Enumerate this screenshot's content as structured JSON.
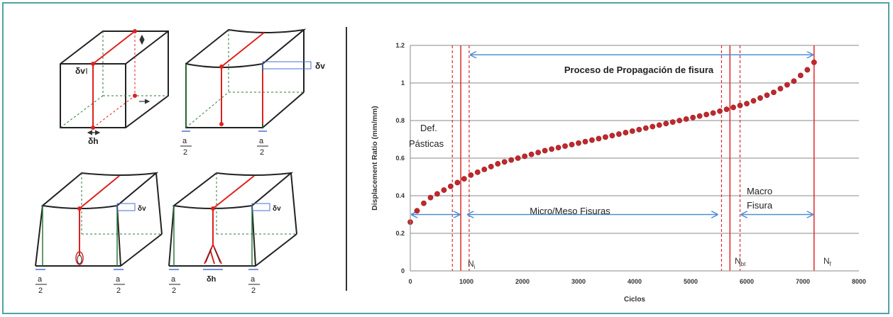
{
  "diagrams": {
    "labels": {
      "dv": "δv",
      "dh": "δh",
      "a": "a",
      "two": "2"
    }
  },
  "chart_data": {
    "type": "scatter",
    "xlabel": "Ciclos",
    "ylabel": "Displacement Ratio (mm/mm)",
    "xlim": [
      0,
      8000
    ],
    "ylim": [
      0,
      1.2
    ],
    "x_ticks": [
      0,
      1000,
      2000,
      3000,
      4000,
      5000,
      6000,
      7000,
      8000
    ],
    "y_ticks": [
      0,
      0.2,
      0.4,
      0.6,
      0.8,
      1,
      1.2
    ],
    "x_tick_labels": [
      "0",
      "1000",
      "2000",
      "3000",
      "4000",
      "5000",
      "6000",
      "7000",
      "8000"
    ],
    "y_tick_labels": [
      "0",
      "0.2",
      "0.4",
      "0.6",
      "0.8",
      "1",
      "1.2"
    ],
    "grid": "horizontal",
    "series": [
      {
        "color": "#c0282d",
        "x": [
          0,
          120,
          240,
          360,
          480,
          600,
          720,
          840,
          960,
          1080,
          1200,
          1320,
          1440,
          1560,
          1680,
          1800,
          1920,
          2040,
          2160,
          2280,
          2400,
          2520,
          2640,
          2760,
          2880,
          3000,
          3120,
          3240,
          3360,
          3480,
          3600,
          3720,
          3840,
          3960,
          4080,
          4200,
          4320,
          4440,
          4560,
          4680,
          4800,
          4920,
          5040,
          5160,
          5280,
          5400,
          5520,
          5640,
          5760,
          5880,
          6000,
          6120,
          6240,
          6360,
          6480,
          6600,
          6720,
          6840,
          6960,
          7080,
          7200
        ],
        "y": [
          0.26,
          0.32,
          0.36,
          0.39,
          0.41,
          0.43,
          0.45,
          0.47,
          0.49,
          0.51,
          0.525,
          0.54,
          0.555,
          0.57,
          0.58,
          0.59,
          0.6,
          0.61,
          0.62,
          0.63,
          0.64,
          0.648,
          0.656,
          0.664,
          0.672,
          0.68,
          0.688,
          0.696,
          0.704,
          0.712,
          0.72,
          0.728,
          0.736,
          0.744,
          0.752,
          0.76,
          0.768,
          0.776,
          0.784,
          0.792,
          0.8,
          0.808,
          0.816,
          0.824,
          0.832,
          0.84,
          0.85,
          0.86,
          0.87,
          0.88,
          0.89,
          0.905,
          0.92,
          0.935,
          0.95,
          0.97,
          0.99,
          1.01,
          1.04,
          1.07,
          1.11
        ]
      }
    ],
    "vlines_solid": [
      900,
      5700,
      7200
    ],
    "vlines_dashed": [
      750,
      1050,
      5550,
      5880
    ],
    "annotations": {
      "propagation": "Proceso de Propagación de fisura",
      "def_line1": "Def.",
      "def_line2": "Pásticas",
      "micro": "Micro/Meso Fisuras",
      "macro_line1": "Macro",
      "macro_line2": "Fisura",
      "ni_base": "N",
      "ni_sub": "i",
      "nbt_base": "N",
      "nbt_sub": "bt",
      "nf_base": "N",
      "nf_sub": "f"
    },
    "arrows": {
      "propagation": [
        1050,
        7200
      ],
      "def": [
        0,
        900
      ],
      "micro": [
        1000,
        5500
      ],
      "macro": [
        5880,
        7200
      ]
    }
  }
}
